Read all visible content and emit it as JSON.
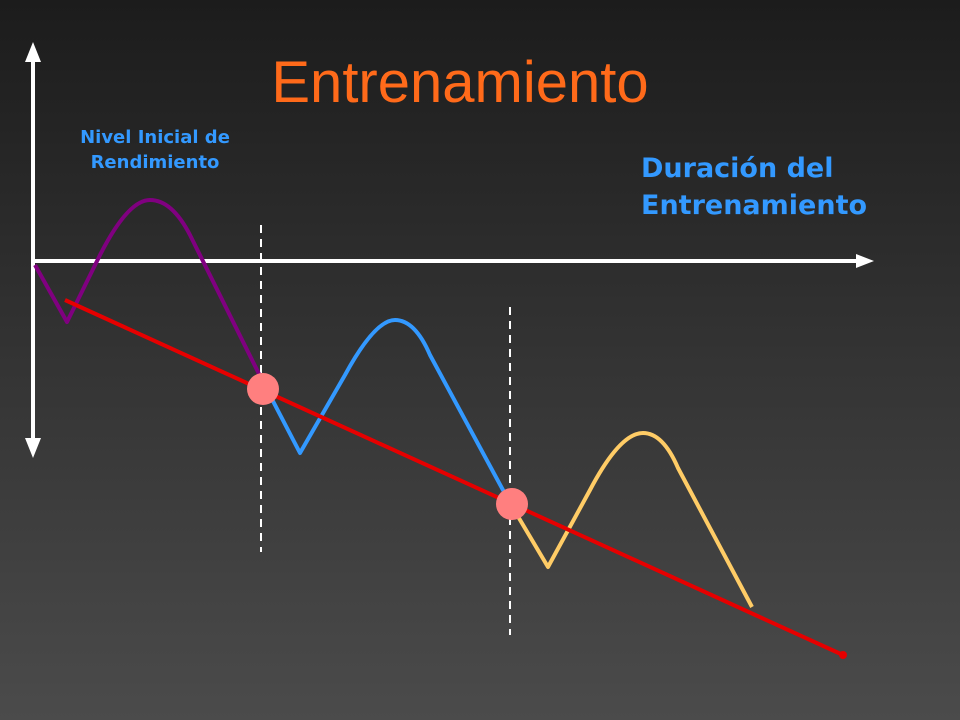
{
  "title": "Entrenamiento",
  "initial_level_label": [
    "Nivel Inicial de",
    "Rendimiento"
  ],
  "duration_label": [
    "Duración del",
    "Entrenamiento"
  ]
}
